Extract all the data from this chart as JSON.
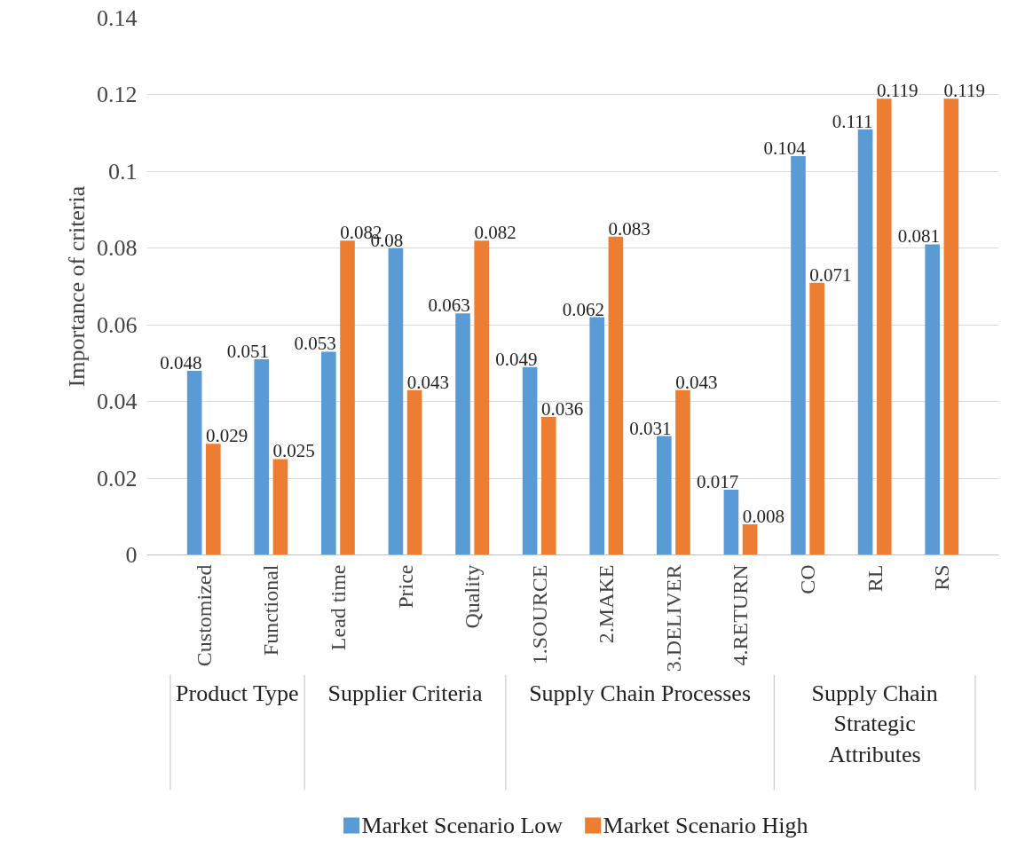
{
  "chart_data": {
    "type": "bar",
    "categories": [
      "Customized",
      "Functional",
      "Lead time",
      "Price",
      "Quality",
      "1.SOURCE",
      "2.MAKE",
      "3.DELIVER",
      "4.RETURN",
      "CO",
      "RL",
      "RS"
    ],
    "series": [
      {
        "name": "Market Scenario Low",
        "color": "#5b9bd5",
        "values": [
          0.048,
          0.051,
          0.053,
          0.08,
          0.063,
          0.049,
          0.062,
          0.031,
          0.017,
          0.104,
          0.111,
          0.081
        ]
      },
      {
        "name": "Market Scenario High",
        "color": "#ed7d31",
        "values": [
          0.029,
          0.025,
          0.082,
          0.043,
          0.082,
          0.036,
          0.083,
          0.043,
          0.008,
          0.071,
          0.119,
          0.119
        ]
      }
    ],
    "ylabel": "Importance of criteria",
    "ylim": [
      0,
      0.14
    ],
    "yticks": [
      0,
      0.02,
      0.04,
      0.06,
      0.08,
      0.1,
      0.12,
      0.14
    ],
    "grid": "y",
    "legend": "bottom",
    "data_labels": true,
    "annotations": [
      "Product Type",
      "Supplier Criteria",
      "Supply Chain Processes",
      "Supply Chain Strategic Attributes"
    ]
  }
}
